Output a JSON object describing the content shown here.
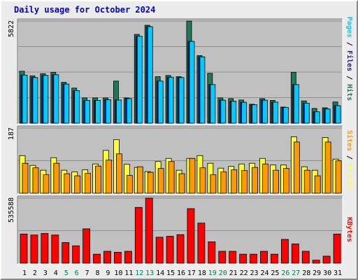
{
  "title": "Daily usage for October 2024",
  "chart_data": [
    {
      "type": "bar",
      "panel": "pages-files-hits",
      "categories": [
        "1",
        "2",
        "3",
        "4",
        "5",
        "6",
        "7",
        "8",
        "9",
        "10",
        "11",
        "12",
        "13",
        "14",
        "15",
        "16",
        "17",
        "18",
        "19",
        "20",
        "21",
        "22",
        "23",
        "24",
        "25",
        "26",
        "27",
        "28",
        "29",
        "30",
        "31"
      ],
      "weekend_days": [
        "5",
        "6",
        "12",
        "13",
        "19",
        "20",
        "26",
        "27"
      ],
      "ymax_label": "5822",
      "ymax": 5822,
      "series": [
        {
          "name": "Hits",
          "color": "#1a7a5a",
          "values": [
            2960,
            2700,
            2820,
            2900,
            2330,
            2000,
            1440,
            1440,
            1440,
            2400,
            1440,
            5060,
            5580,
            2650,
            2720,
            2650,
            5820,
            3850,
            2840,
            1440,
            1400,
            1320,
            1080,
            1400,
            1300,
            920,
            2900,
            1270,
            840,
            880,
            1210
          ]
        },
        {
          "name": "Files",
          "color": "#2020a0",
          "values": [
            2740,
            2600,
            2720,
            2760,
            2230,
            1850,
            1300,
            1300,
            1340,
            1320,
            1400,
            4950,
            5500,
            2400,
            2620,
            2600,
            4660,
            3780,
            2200,
            1310,
            1250,
            1190,
            1050,
            1310,
            1200,
            900,
            2200,
            1140,
            650,
            810,
            1000
          ]
        },
        {
          "name": "Pages",
          "color": "#00ccff",
          "values": [
            2740,
            2600,
            2720,
            2760,
            2230,
            1850,
            1300,
            1300,
            1340,
            1320,
            1400,
            4950,
            5500,
            2400,
            2620,
            2600,
            4660,
            3780,
            2200,
            1310,
            1250,
            1190,
            1050,
            1310,
            1200,
            900,
            2200,
            1140,
            650,
            810,
            1000
          ]
        }
      ]
    },
    {
      "type": "bar",
      "panel": "visits-sites",
      "categories": [
        "1",
        "2",
        "3",
        "4",
        "5",
        "6",
        "7",
        "8",
        "9",
        "10",
        "11",
        "12",
        "13",
        "14",
        "15",
        "16",
        "17",
        "18",
        "19",
        "20",
        "21",
        "22",
        "23",
        "24",
        "25",
        "26",
        "27",
        "28",
        "29",
        "30",
        "31"
      ],
      "ymax_label": "187",
      "ymax": 187,
      "series": [
        {
          "name": "Visits",
          "color": "#ffff33",
          "values": [
            108,
            80,
            66,
            102,
            66,
            61,
            67,
            84,
            123,
            154,
            83,
            74,
            62,
            91,
            100,
            66,
            100,
            108,
            86,
            72,
            77,
            84,
            86,
            100,
            81,
            81,
            162,
            76,
            66,
            160,
            98
          ]
        },
        {
          "name": "Sites",
          "color": "#ff9900",
          "values": [
            86,
            73,
            53,
            86,
            56,
            50,
            57,
            78,
            95,
            113,
            51,
            76,
            60,
            71,
            91,
            56,
            100,
            73,
            53,
            61,
            67,
            65,
            74,
            84,
            66,
            71,
            147,
            66,
            50,
            147,
            93
          ]
        }
      ]
    },
    {
      "type": "bar",
      "panel": "kbytes",
      "categories": [
        "1",
        "2",
        "3",
        "4",
        "5",
        "6",
        "7",
        "8",
        "9",
        "10",
        "11",
        "12",
        "13",
        "14",
        "15",
        "16",
        "17",
        "18",
        "19",
        "20",
        "21",
        "22",
        "23",
        "24",
        "25",
        "26",
        "27",
        "28",
        "29",
        "30",
        "31"
      ],
      "ymax_label": "535588",
      "ymax": 535588,
      "series": [
        {
          "name": "KBytes",
          "color": "#ff0000",
          "values": [
            240000,
            232000,
            245000,
            232000,
            170000,
            143000,
            283000,
            74000,
            98000,
            90000,
            98000,
            459000,
            535588,
            214000,
            222000,
            235000,
            449000,
            330000,
            176000,
            98000,
            98000,
            74000,
            74000,
            98000,
            74000,
            196000,
            159000,
            98000,
            25000,
            58000,
            240000
          ]
        }
      ]
    }
  ]
}
